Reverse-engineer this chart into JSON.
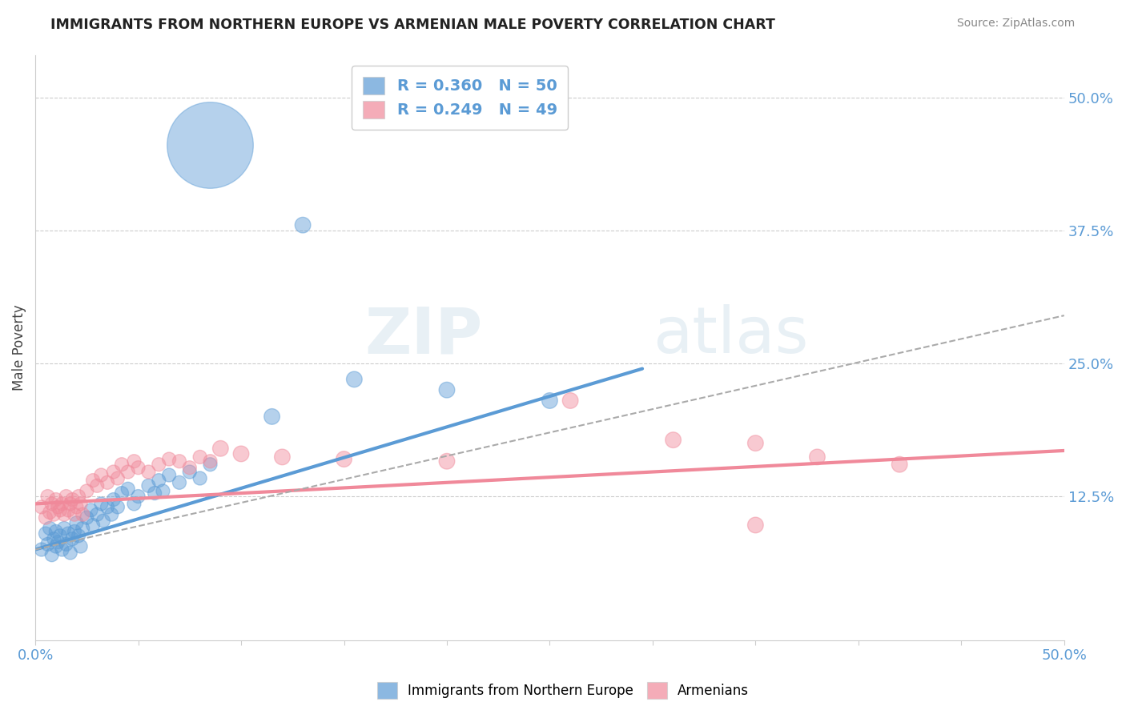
{
  "title": "IMMIGRANTS FROM NORTHERN EUROPE VS ARMENIAN MALE POVERTY CORRELATION CHART",
  "source": "Source: ZipAtlas.com",
  "ylabel": "Male Poverty",
  "xlim": [
    0.0,
    0.5
  ],
  "ylim": [
    -0.01,
    0.54
  ],
  "yticks_right": [
    0.125,
    0.25,
    0.375,
    0.5
  ],
  "ytick_right_labels": [
    "12.5%",
    "25.0%",
    "37.5%",
    "50.0%"
  ],
  "legend_blue_R": "R = 0.360",
  "legend_blue_N": "N = 50",
  "legend_pink_R": "R = 0.249",
  "legend_pink_N": "N = 49",
  "blue_color": "#5b9bd5",
  "pink_color": "#f0899a",
  "blue_scatter": [
    [
      0.003,
      0.075
    ],
    [
      0.005,
      0.09
    ],
    [
      0.006,
      0.08
    ],
    [
      0.007,
      0.095
    ],
    [
      0.008,
      0.07
    ],
    [
      0.009,
      0.085
    ],
    [
      0.01,
      0.078
    ],
    [
      0.01,
      0.092
    ],
    [
      0.011,
      0.082
    ],
    [
      0.012,
      0.088
    ],
    [
      0.013,
      0.075
    ],
    [
      0.014,
      0.095
    ],
    [
      0.015,
      0.08
    ],
    [
      0.016,
      0.09
    ],
    [
      0.017,
      0.072
    ],
    [
      0.018,
      0.085
    ],
    [
      0.019,
      0.092
    ],
    [
      0.02,
      0.1
    ],
    [
      0.021,
      0.088
    ],
    [
      0.022,
      0.078
    ],
    [
      0.023,
      0.095
    ],
    [
      0.025,
      0.105
    ],
    [
      0.027,
      0.112
    ],
    [
      0.028,
      0.098
    ],
    [
      0.03,
      0.108
    ],
    [
      0.032,
      0.118
    ],
    [
      0.033,
      0.102
    ],
    [
      0.035,
      0.115
    ],
    [
      0.037,
      0.108
    ],
    [
      0.038,
      0.122
    ],
    [
      0.04,
      0.115
    ],
    [
      0.042,
      0.128
    ],
    [
      0.045,
      0.132
    ],
    [
      0.048,
      0.118
    ],
    [
      0.05,
      0.125
    ],
    [
      0.055,
      0.135
    ],
    [
      0.058,
      0.128
    ],
    [
      0.06,
      0.14
    ],
    [
      0.062,
      0.13
    ],
    [
      0.065,
      0.145
    ],
    [
      0.07,
      0.138
    ],
    [
      0.075,
      0.148
    ],
    [
      0.08,
      0.142
    ],
    [
      0.085,
      0.155
    ],
    [
      0.115,
      0.2
    ],
    [
      0.155,
      0.235
    ],
    [
      0.2,
      0.225
    ],
    [
      0.25,
      0.215
    ],
    [
      0.085,
      0.455
    ],
    [
      0.13,
      0.38
    ]
  ],
  "blue_sizes": [
    30,
    30,
    30,
    30,
    30,
    30,
    30,
    30,
    30,
    30,
    30,
    30,
    30,
    30,
    30,
    30,
    30,
    30,
    30,
    30,
    30,
    30,
    30,
    30,
    30,
    30,
    30,
    30,
    30,
    30,
    30,
    30,
    30,
    30,
    30,
    30,
    30,
    30,
    30,
    30,
    30,
    30,
    30,
    30,
    40,
    40,
    40,
    40,
    1200,
    40
  ],
  "pink_scatter": [
    [
      0.003,
      0.115
    ],
    [
      0.005,
      0.105
    ],
    [
      0.006,
      0.125
    ],
    [
      0.007,
      0.11
    ],
    [
      0.008,
      0.118
    ],
    [
      0.009,
      0.108
    ],
    [
      0.01,
      0.122
    ],
    [
      0.011,
      0.115
    ],
    [
      0.012,
      0.112
    ],
    [
      0.013,
      0.118
    ],
    [
      0.014,
      0.108
    ],
    [
      0.015,
      0.125
    ],
    [
      0.016,
      0.112
    ],
    [
      0.017,
      0.118
    ],
    [
      0.018,
      0.122
    ],
    [
      0.019,
      0.108
    ],
    [
      0.02,
      0.115
    ],
    [
      0.021,
      0.125
    ],
    [
      0.022,
      0.118
    ],
    [
      0.023,
      0.108
    ],
    [
      0.025,
      0.13
    ],
    [
      0.028,
      0.14
    ],
    [
      0.03,
      0.135
    ],
    [
      0.032,
      0.145
    ],
    [
      0.035,
      0.138
    ],
    [
      0.038,
      0.148
    ],
    [
      0.04,
      0.142
    ],
    [
      0.042,
      0.155
    ],
    [
      0.045,
      0.148
    ],
    [
      0.048,
      0.158
    ],
    [
      0.05,
      0.152
    ],
    [
      0.055,
      0.148
    ],
    [
      0.06,
      0.155
    ],
    [
      0.065,
      0.16
    ],
    [
      0.07,
      0.158
    ],
    [
      0.075,
      0.152
    ],
    [
      0.08,
      0.162
    ],
    [
      0.085,
      0.158
    ],
    [
      0.09,
      0.17
    ],
    [
      0.1,
      0.165
    ],
    [
      0.12,
      0.162
    ],
    [
      0.15,
      0.16
    ],
    [
      0.2,
      0.158
    ],
    [
      0.26,
      0.215
    ],
    [
      0.31,
      0.178
    ],
    [
      0.35,
      0.175
    ],
    [
      0.38,
      0.162
    ],
    [
      0.42,
      0.155
    ],
    [
      0.35,
      0.098
    ]
  ],
  "pink_sizes": [
    30,
    30,
    30,
    30,
    30,
    30,
    30,
    30,
    30,
    30,
    30,
    30,
    30,
    30,
    30,
    30,
    30,
    30,
    30,
    30,
    30,
    30,
    30,
    30,
    30,
    30,
    30,
    30,
    30,
    30,
    30,
    30,
    30,
    30,
    30,
    30,
    30,
    30,
    40,
    40,
    40,
    40,
    40,
    40,
    40,
    40,
    40,
    40,
    40
  ],
  "blue_trend": {
    "x_start": 0.0,
    "x_end": 0.295,
    "y_start": 0.075,
    "y_end": 0.245
  },
  "pink_trend": {
    "x_start": 0.0,
    "x_end": 0.5,
    "y_start": 0.118,
    "y_end": 0.168
  },
  "dashed_trend": {
    "x_start": 0.0,
    "x_end": 0.5,
    "y_start": 0.075,
    "y_end": 0.295
  },
  "watermark_zip": "ZIP",
  "watermark_atlas": "atlas",
  "background_color": "#ffffff",
  "grid_color": "#cccccc",
  "title_color": "#222222",
  "source_color": "#888888",
  "axis_label_color": "#444444",
  "tick_label_color": "#5b9bd5"
}
